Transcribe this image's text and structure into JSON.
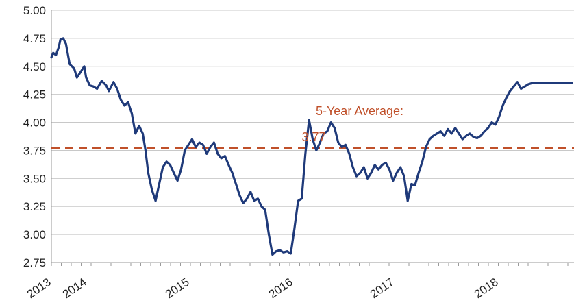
{
  "chart_data": {
    "type": "line",
    "title": "",
    "xlabel": "",
    "ylabel": "",
    "ylim": [
      2.75,
      5.0
    ],
    "y_ticks": [
      "5.00",
      "4.75",
      "4.50",
      "4.25",
      "4.00",
      "3.75",
      "3.50",
      "3.25",
      "3.00",
      "2.75"
    ],
    "x_ticks": [
      "2013",
      "2014",
      "2015",
      "2016",
      "2017",
      "2018"
    ],
    "x_tick_positions": [
      2013.0,
      2013.15,
      2014.0,
      2015.0,
      2016.0,
      2017.0
    ],
    "grid": true,
    "legend": "none",
    "series": [
      {
        "color": "#1f3a7a",
        "x": [
          2013.0,
          2013.02,
          2013.05,
          2013.08,
          2013.1,
          2013.13,
          2013.16,
          2013.2,
          2013.25,
          2013.28,
          2013.32,
          2013.36,
          2013.38,
          2013.42,
          2013.46,
          2013.5,
          2013.55,
          2013.6,
          2013.63,
          2013.68,
          2013.72,
          2013.76,
          2013.8,
          2013.84,
          2013.88,
          2013.92,
          2013.96,
          2014.0,
          2014.03,
          2014.06,
          2014.1,
          2014.14,
          2014.18,
          2014.22,
          2014.26,
          2014.3,
          2014.34,
          2014.38,
          2014.42,
          2014.46,
          2014.5,
          2014.54,
          2014.58,
          2014.62,
          2014.66,
          2014.7,
          2014.74,
          2014.78,
          2014.82,
          2014.86,
          2014.9,
          2014.94,
          2014.98,
          2015.02,
          2015.06,
          2015.1,
          2015.14,
          2015.18,
          2015.22,
          2015.26,
          2015.3,
          2015.34,
          2015.38,
          2015.42,
          2015.46,
          2015.5,
          2015.54,
          2015.58,
          2015.62,
          2015.66,
          2015.7,
          2015.74,
          2015.78,
          2015.82,
          2015.86,
          2015.9,
          2015.94,
          2015.98,
          2016.02,
          2016.06,
          2016.1,
          2016.14,
          2016.18,
          2016.22,
          2016.26,
          2016.3,
          2016.34,
          2016.38,
          2016.42,
          2016.46,
          2016.5,
          2016.54,
          2016.58,
          2016.62,
          2016.66,
          2016.7,
          2016.74,
          2016.78,
          2016.82,
          2016.86,
          2016.9,
          2016.94,
          2016.98,
          2017.02,
          2017.06,
          2017.1,
          2017.14,
          2017.18,
          2017.22,
          2017.26,
          2017.3,
          2017.34,
          2017.38,
          2017.42,
          2017.46,
          2017.5,
          2017.54,
          2017.58,
          2017.62,
          2017.66,
          2017.7,
          2017.74,
          2017.78,
          2017.82,
          2017.86,
          2017.9,
          2017.94,
          2017.98,
          2018.02,
          2018.06,
          2018.1,
          2018.14,
          2018.18,
          2018.22,
          2018.26,
          2018.3,
          2018.34,
          2018.38,
          2018.42,
          2018.46,
          2018.5,
          2018.54,
          2018.58,
          2018.62,
          2018.66,
          2018.7
        ],
        "y": [
          4.58,
          4.62,
          4.6,
          4.67,
          4.74,
          4.75,
          4.7,
          4.52,
          4.48,
          4.4,
          4.45,
          4.5,
          4.4,
          4.33,
          4.32,
          4.3,
          4.37,
          4.33,
          4.28,
          4.36,
          4.3,
          4.2,
          4.15,
          4.18,
          4.08,
          3.9,
          3.97,
          3.9,
          3.75,
          3.55,
          3.4,
          3.3,
          3.45,
          3.6,
          3.65,
          3.62,
          3.55,
          3.48,
          3.58,
          3.75,
          3.8,
          3.85,
          3.78,
          3.82,
          3.8,
          3.72,
          3.78,
          3.82,
          3.72,
          3.68,
          3.7,
          3.62,
          3.55,
          3.45,
          3.35,
          3.28,
          3.32,
          3.38,
          3.3,
          3.32,
          3.25,
          3.22,
          3.0,
          2.82,
          2.85,
          2.86,
          2.84,
          2.85,
          2.83,
          3.05,
          3.3,
          3.32,
          3.72,
          4.02,
          3.85,
          3.75,
          3.82,
          3.9,
          3.92,
          4.0,
          3.95,
          3.82,
          3.78,
          3.8,
          3.72,
          3.6,
          3.52,
          3.55,
          3.6,
          3.5,
          3.55,
          3.62,
          3.58,
          3.62,
          3.64,
          3.58,
          3.48,
          3.55,
          3.6,
          3.52,
          3.3,
          3.45,
          3.44,
          3.55,
          3.65,
          3.78,
          3.85,
          3.88,
          3.9,
          3.92,
          3.88,
          3.94,
          3.9,
          3.95,
          3.9,
          3.85,
          3.88,
          3.9,
          3.87,
          3.86,
          3.88,
          3.92,
          3.95,
          4.0,
          3.98,
          4.05,
          4.15,
          4.22,
          4.28,
          4.32,
          4.36,
          4.3,
          4.32,
          4.34,
          4.35,
          4.35,
          4.35,
          4.35,
          4.35,
          4.35,
          4.35,
          4.35,
          4.35,
          4.35,
          4.35,
          4.35
        ]
      }
    ],
    "reference_line": {
      "value": 3.77,
      "color": "#c0502a",
      "style": "dashed"
    },
    "annotations": [
      {
        "text": "5-Year Average:",
        "color": "#c0502a"
      },
      {
        "text": "3.77",
        "color": "#c0502a"
      }
    ]
  }
}
